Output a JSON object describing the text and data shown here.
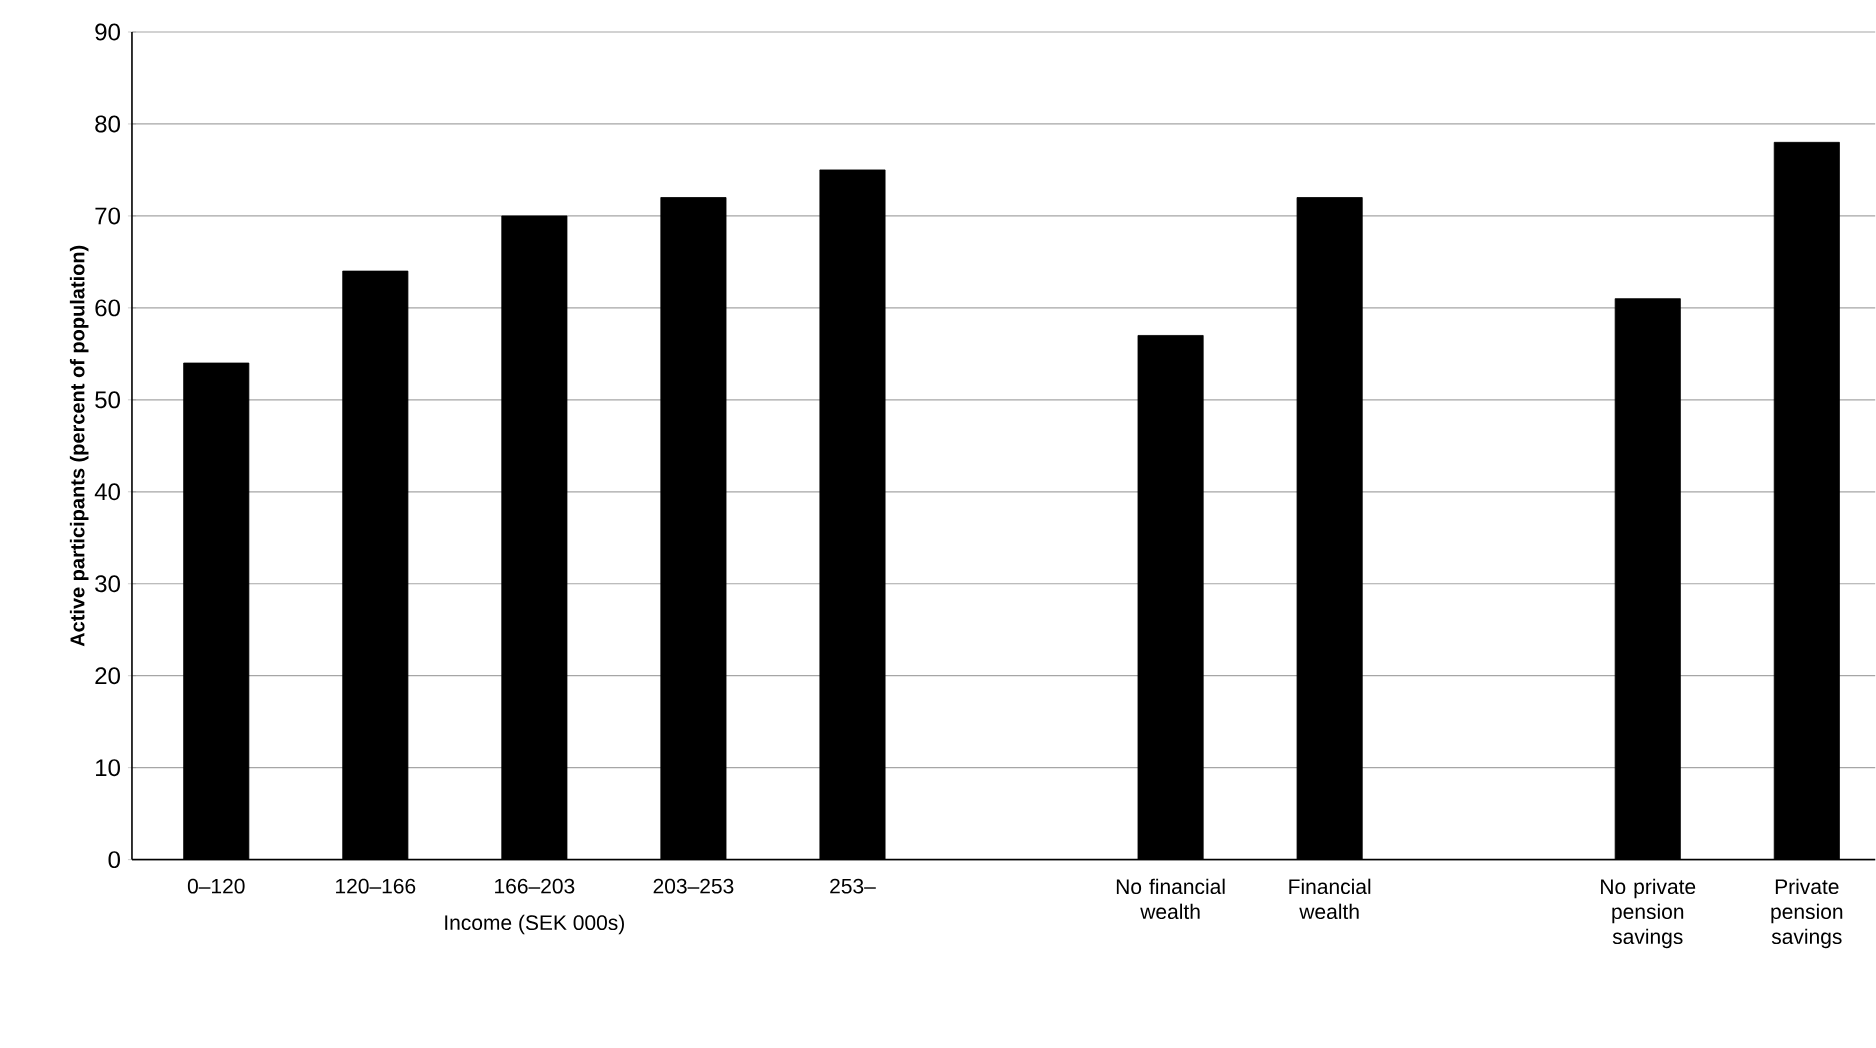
{
  "chart_data": {
    "type": "bar",
    "ylabel": "Active participants (percent of population)",
    "xlabel": "Income (SEK 000s)",
    "categories": [
      "0–120",
      "120–166",
      "166–203",
      "203–253",
      "253–",
      null,
      "No financial wealth",
      "Financial wealth",
      null,
      "No private pension savings",
      "Private pension savings"
    ],
    "values": [
      54,
      64,
      70,
      72,
      75,
      null,
      57,
      72,
      null,
      61,
      78
    ],
    "color": "#000000",
    "ylim": [
      0,
      90
    ],
    "yticks": [
      0,
      10,
      20,
      30,
      40,
      50,
      60,
      70,
      80,
      90
    ],
    "grid": "y"
  }
}
